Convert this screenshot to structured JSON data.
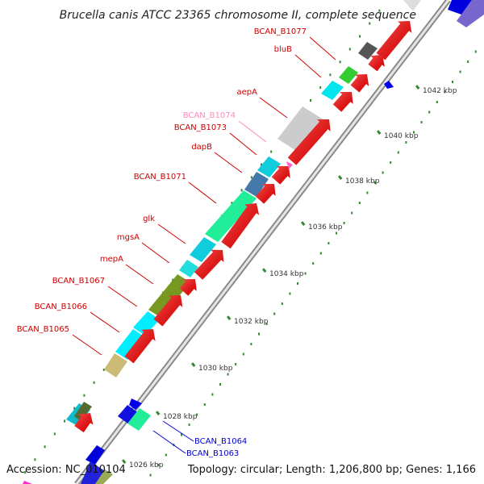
{
  "title": "Brucella canis ATCC 23365 chromosome II, complete sequence",
  "footer": {
    "accession": "Accession: NC_010104",
    "topology": "Topology: circular; Length: 1,206,800 bp; Genes: 1,166"
  },
  "colors": {
    "backbone": "#9a9a9a",
    "forward_gene": "#ff0000",
    "reverse_gene": "#0000ff",
    "label_red": "#cc0000",
    "label_blue": "#0000cc",
    "label_pink": "#ff88bb",
    "ticks": "#338833"
  },
  "ticks": [
    "1026 kbp",
    "1028 kbp",
    "1030 kbp",
    "1032 kbp",
    "1034 kbp",
    "1036 kbp",
    "1038 kbp",
    "1040 kbp",
    "1042 kbp"
  ],
  "gene_labels": [
    {
      "text": "BCAN_B1077",
      "color": "red"
    },
    {
      "text": "bluB",
      "color": "red"
    },
    {
      "text": "aepA",
      "color": "red"
    },
    {
      "text": "BCAN_B1074",
      "color": "pink"
    },
    {
      "text": "BCAN_B1073",
      "color": "red"
    },
    {
      "text": "dapB",
      "color": "red"
    },
    {
      "text": "BCAN_B1071",
      "color": "red"
    },
    {
      "text": "glk",
      "color": "red"
    },
    {
      "text": "mgsA",
      "color": "red"
    },
    {
      "text": "mepA",
      "color": "red"
    },
    {
      "text": "BCAN_B1067",
      "color": "red"
    },
    {
      "text": "BCAN_B1066",
      "color": "red"
    },
    {
      "text": "BCAN_B1065",
      "color": "red"
    },
    {
      "text": "BCAN_B1064",
      "color": "blue"
    },
    {
      "text": "BCAN_B1063",
      "color": "blue"
    }
  ]
}
